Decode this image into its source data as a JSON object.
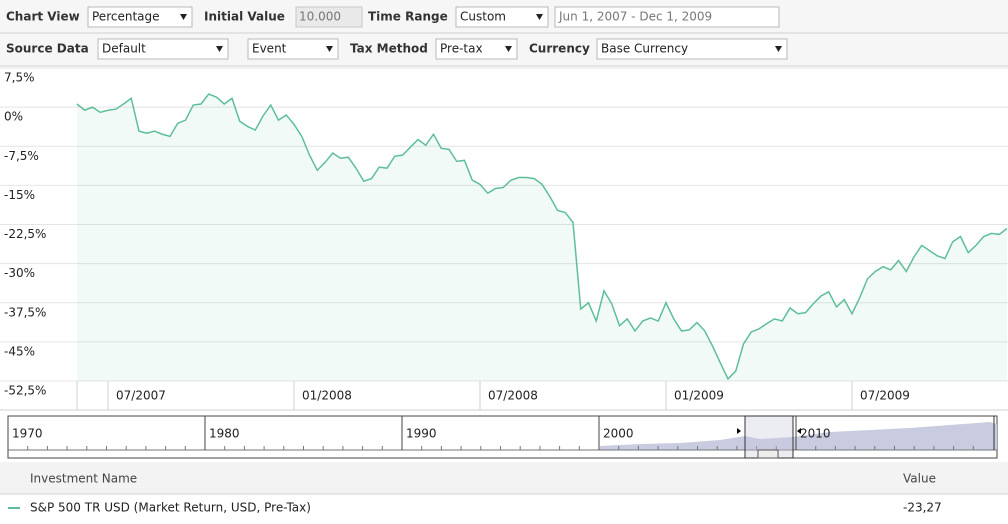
{
  "toolbar": {
    "chart_view_label": "Chart View",
    "chart_view": "Percentage",
    "initial_value_label": "Initial Value",
    "initial_value": "10.000",
    "time_range_label": "Time Range",
    "time_range": "Custom",
    "date_range": "Jun 1, 2007 - Dec 1, 2009",
    "source_data_label": "Source Data",
    "source_data": "Default",
    "event": "Event",
    "tax_method_label": "Tax Method",
    "tax_method": "Pre-tax",
    "currency_label": "Currency",
    "currency": "Base Currency"
  },
  "chart_data": {
    "type": "line",
    "categories": [
      null,
      null,
      null,
      null,
      "07/2007",
      null,
      null,
      null,
      null,
      null,
      null,
      null,
      null,
      null,
      null,
      null,
      null,
      null,
      null,
      null,
      null,
      null,
      null,
      null,
      null,
      null,
      null,
      null,
      "01/2008",
      null,
      null,
      null,
      null,
      null,
      null,
      null,
      null,
      null,
      null,
      null,
      null,
      null,
      null,
      null,
      null,
      null,
      null,
      null,
      null,
      null,
      null,
      null,
      "07/2008",
      null,
      null,
      null,
      null,
      null,
      null,
      null,
      null,
      null,
      null,
      null,
      null,
      null,
      null,
      null,
      null,
      null,
      null,
      null,
      null,
      null,
      null,
      null,
      "01/2009",
      null,
      null,
      null,
      null,
      null,
      null,
      null,
      null,
      null,
      null,
      null,
      null,
      null,
      null,
      null,
      null,
      null,
      null,
      null,
      null,
      null,
      null,
      null,
      "07/2009",
      null,
      null,
      null,
      null,
      null,
      null,
      null,
      null,
      null,
      null,
      null,
      null,
      null,
      null,
      null,
      null,
      null,
      null,
      null,
      null
    ],
    "series": [
      {
        "color": "#5dbf97",
        "values": [
          0.6,
          -0.6,
          0,
          -1.0,
          -0.6,
          -0.4,
          0.6,
          1.7,
          -4.6,
          -5.0,
          -4.6,
          -5.2,
          -5.6,
          -3.1,
          -2.5,
          0.4,
          0.6,
          2.5,
          1.9,
          0.6,
          1.7,
          -2.7,
          -3.7,
          -4.4,
          -1.7,
          0.4,
          -2.5,
          -1.5,
          -3.3,
          -5.6,
          -9.2,
          -12.1,
          -10.6,
          -8.8,
          -9.8,
          -9.6,
          -11.7,
          -14.2,
          -13.7,
          -11.5,
          -11.7,
          -9.4,
          -9.2,
          -7.7,
          -6.2,
          -7.3,
          -5.2,
          -7.9,
          -8.1,
          -10.4,
          -10.2,
          -14.0,
          -14.8,
          -16.5,
          -15.6,
          -15.4,
          -14.0,
          -13.5,
          -13.5,
          -13.7,
          -14.8,
          -17.1,
          -19.8,
          -20.2,
          -22.1,
          -38.7,
          -37.5,
          -41.0,
          -35.2,
          -37.7,
          -41.9,
          -40.6,
          -42.9,
          -41.0,
          -40.4,
          -41.0,
          -37.5,
          -40.6,
          -42.9,
          -42.7,
          -41.3,
          -42.9,
          -45.8,
          -49.0,
          -52.1,
          -50.6,
          -45.4,
          -43.1,
          -42.5,
          -41.5,
          -40.6,
          -41.0,
          -38.5,
          -39.6,
          -39.4,
          -37.7,
          -36.2,
          -35.4,
          -38.3,
          -36.9,
          -39.6,
          -36.5,
          -32.9,
          -31.5,
          -30.6,
          -31.2,
          -29.4,
          -31.5,
          -28.7,
          -26.5,
          -27.5,
          -28.5,
          -29.0,
          -25.8,
          -24.8,
          -27.9,
          -26.5,
          -24.8,
          -24.2,
          -24.4,
          -23.27
        ]
      }
    ],
    "ylim": [
      -52.5,
      7.5
    ],
    "yticks": [
      {
        "value": 7.5,
        "label": "7,5%"
      },
      {
        "value": 0,
        "label": "0%"
      },
      {
        "value": -7.5,
        "label": "-7,5%"
      },
      {
        "value": -15,
        "label": "-15%"
      },
      {
        "value": -22.5,
        "label": "-22,5%"
      },
      {
        "value": -30,
        "label": "-30%"
      },
      {
        "value": -37.5,
        "label": "-37,5%"
      },
      {
        "value": -45,
        "label": "-45%"
      },
      {
        "value": -52.5,
        "label": "-52,5%"
      }
    ],
    "grid": true,
    "area": true
  },
  "navigator": {
    "years": [
      "1970",
      "1980",
      "1990",
      "2000",
      "2010"
    ]
  },
  "table": {
    "header": [
      "Investment Name",
      "Value"
    ],
    "rows": [
      [
        "S&P 500 TR USD (Market Return, USD, Pre-Tax)",
        "-23,27"
      ]
    ]
  }
}
